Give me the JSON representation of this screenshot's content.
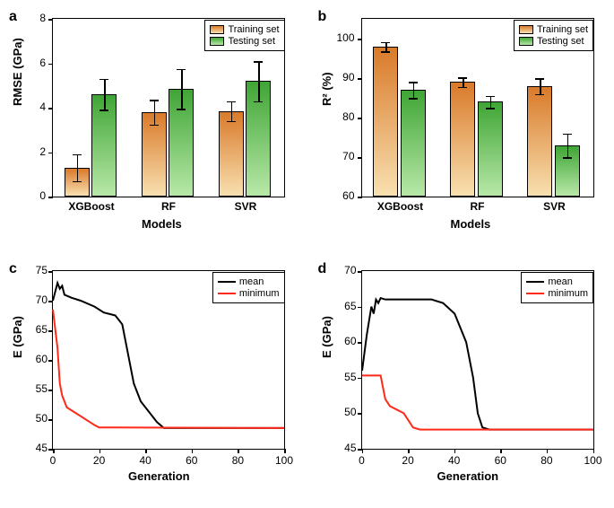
{
  "panels": {
    "a": {
      "label": "a",
      "type": "bar",
      "xlabel": "Models",
      "ylabel": "RMSE (GPa)",
      "ylim": [
        0,
        8
      ],
      "ytick_step": 2,
      "categories": [
        "XGBoost",
        "RF",
        "SVR"
      ],
      "series": [
        {
          "name": "Training set",
          "color_top": "#d97a2a",
          "color_bottom": "#f8e0b0",
          "values": [
            1.3,
            3.8,
            3.85
          ],
          "err": [
            0.6,
            0.55,
            0.45
          ]
        },
        {
          "name": "Testing set",
          "color_top": "#3fa535",
          "color_bottom": "#b8e8a8",
          "values": [
            4.6,
            4.85,
            5.2
          ],
          "err": [
            0.7,
            0.9,
            0.9
          ]
        }
      ],
      "bar_width": 0.35,
      "legend_pos": "top-right",
      "label_fontsize": 13,
      "tick_fontsize": 12,
      "border_color": "#000000",
      "background_color": "#ffffff"
    },
    "b": {
      "label": "b",
      "type": "bar",
      "xlabel": "Models",
      "ylabel": "R² (%)",
      "ylim": [
        60,
        105
      ],
      "yticks": [
        60,
        70,
        80,
        90,
        100
      ],
      "categories": [
        "XGBoost",
        "RF",
        "SVR"
      ],
      "series": [
        {
          "name": "Training set",
          "color_top": "#d97a2a",
          "color_bottom": "#f8e0b0",
          "values": [
            98,
            89,
            88
          ],
          "err": [
            1.2,
            1.2,
            2
          ]
        },
        {
          "name": "Testing set",
          "color_top": "#3fa535",
          "color_bottom": "#b8e8a8",
          "values": [
            87,
            84,
            73
          ],
          "err": [
            2,
            1.5,
            3
          ]
        }
      ],
      "bar_width": 0.35,
      "legend_pos": "top-right",
      "label_fontsize": 13,
      "tick_fontsize": 12,
      "border_color": "#000000",
      "background_color": "#ffffff"
    },
    "c": {
      "label": "c",
      "type": "line",
      "xlabel": "Generation",
      "ylabel": "E (GPa)",
      "xlim": [
        0,
        100
      ],
      "xtick_step": 20,
      "ylim": [
        45,
        75
      ],
      "ytick_step": 5,
      "series": [
        {
          "name": "mean",
          "color": "#000000",
          "width": 2,
          "points": [
            [
              0,
              70
            ],
            [
              2,
              73
            ],
            [
              3,
              72
            ],
            [
              4,
              72.5
            ],
            [
              5,
              71
            ],
            [
              8,
              70.5
            ],
            [
              12,
              70
            ],
            [
              18,
              69
            ],
            [
              22,
              68
            ],
            [
              27,
              67.5
            ],
            [
              30,
              66
            ],
            [
              32,
              62
            ],
            [
              35,
              56
            ],
            [
              38,
              53
            ],
            [
              42,
              51
            ],
            [
              45,
              49.5
            ],
            [
              48,
              48.5
            ],
            [
              100,
              48.5
            ]
          ]
        },
        {
          "name": "minimum",
          "color": "#ff2a1a",
          "width": 2,
          "points": [
            [
              0,
              68.5
            ],
            [
              2,
              62
            ],
            [
              3,
              56
            ],
            [
              4,
              54
            ],
            [
              5,
              53
            ],
            [
              6,
              52
            ],
            [
              8,
              51.5
            ],
            [
              10,
              51
            ],
            [
              12,
              50.5
            ],
            [
              14,
              50
            ],
            [
              16,
              49.5
            ],
            [
              18,
              49
            ],
            [
              20,
              48.6
            ],
            [
              100,
              48.5
            ]
          ]
        }
      ],
      "legend_pos": "top-right",
      "label_fontsize": 13,
      "tick_fontsize": 12,
      "border_color": "#000000",
      "background_color": "#ffffff"
    },
    "d": {
      "label": "d",
      "type": "line",
      "xlabel": "Generation",
      "ylabel": "E (GPa)",
      "xlim": [
        0,
        100
      ],
      "xtick_step": 20,
      "ylim": [
        45,
        70
      ],
      "ytick_step": 5,
      "series": [
        {
          "name": "mean",
          "color": "#000000",
          "width": 2,
          "points": [
            [
              0,
              56
            ],
            [
              2,
              61
            ],
            [
              4,
              65
            ],
            [
              5,
              64
            ],
            [
              6,
              66
            ],
            [
              7,
              65.5
            ],
            [
              8,
              66.2
            ],
            [
              10,
              66
            ],
            [
              15,
              66
            ],
            [
              20,
              66
            ],
            [
              25,
              66
            ],
            [
              30,
              66
            ],
            [
              35,
              65.5
            ],
            [
              40,
              64
            ],
            [
              45,
              60
            ],
            [
              48,
              55
            ],
            [
              50,
              50
            ],
            [
              52,
              48
            ],
            [
              55,
              47.7
            ],
            [
              100,
              47.7
            ]
          ]
        },
        {
          "name": "minimum",
          "color": "#ff2a1a",
          "width": 2,
          "points": [
            [
              0,
              55.3
            ],
            [
              8,
              55.3
            ],
            [
              10,
              52
            ],
            [
              12,
              51
            ],
            [
              15,
              50.5
            ],
            [
              18,
              50
            ],
            [
              20,
              49
            ],
            [
              22,
              48
            ],
            [
              25,
              47.7
            ],
            [
              100,
              47.7
            ]
          ]
        }
      ],
      "legend_pos": "top-right",
      "label_fontsize": 13,
      "tick_fontsize": 12,
      "border_color": "#000000",
      "background_color": "#ffffff"
    }
  }
}
